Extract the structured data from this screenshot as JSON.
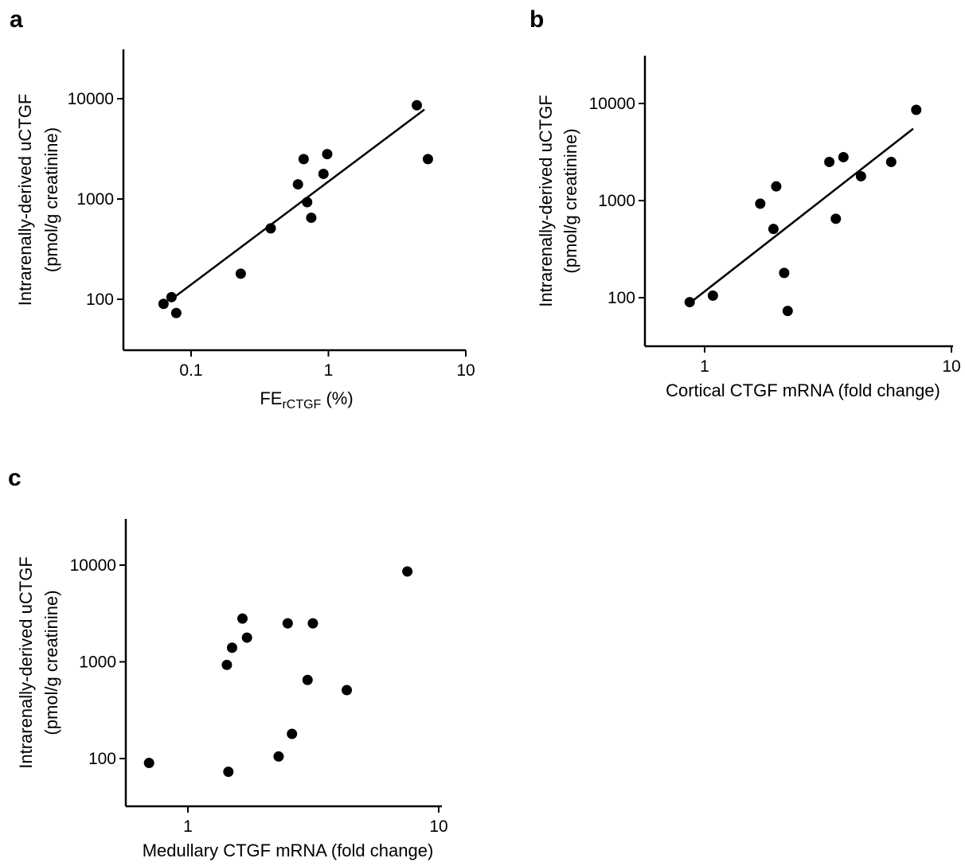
{
  "chart_data": [
    {
      "panel": "a",
      "type": "scatter",
      "xlabel": "FE",
      "xlabel_sub": "rCTGF",
      "xlabel_suffix": " (%)",
      "ylabel": "Intrarenally-derived uCTGF",
      "ylabel2": "(pmol/g creatinine)",
      "xscale": "log",
      "yscale": "log",
      "xlim": [
        0.03,
        11
      ],
      "ylim": [
        40,
        35000
      ],
      "xticks": [
        0.1,
        1,
        10
      ],
      "xtick_labels": [
        "0.1",
        "1",
        "10"
      ],
      "yticks": [
        100,
        1000,
        10000
      ],
      "ytick_labels": [
        "100",
        "1000",
        "10000"
      ],
      "points": [
        [
          0.063,
          90
        ],
        [
          0.072,
          105
        ],
        [
          0.078,
          73
        ],
        [
          0.23,
          180
        ],
        [
          0.38,
          510
        ],
        [
          0.6,
          1400
        ],
        [
          0.66,
          2500
        ],
        [
          0.7,
          930
        ],
        [
          0.75,
          650
        ],
        [
          0.92,
          1780
        ],
        [
          0.98,
          2800
        ],
        [
          4.4,
          8600
        ],
        [
          5.3,
          2500
        ]
      ],
      "fit": [
        [
          0.072,
          100
        ],
        [
          5.0,
          7800
        ]
      ]
    },
    {
      "panel": "b",
      "type": "scatter",
      "xlabel": "Cortical CTGF mRNA (fold change)",
      "ylabel": "Intrarenally-derived uCTGF",
      "ylabel2": "(pmol/g creatinine)",
      "xscale": "log",
      "yscale": "log",
      "xlim": [
        0.55,
        10.5
      ],
      "ylim": [
        30,
        35000
      ],
      "xticks": [
        1,
        10
      ],
      "xtick_labels": [
        "1",
        "10"
      ],
      "yticks": [
        100,
        1000,
        10000
      ],
      "ytick_labels": [
        "100",
        "1000",
        "10000"
      ],
      "points": [
        [
          0.87,
          90
        ],
        [
          1.08,
          105
        ],
        [
          1.68,
          930
        ],
        [
          1.9,
          510
        ],
        [
          1.95,
          1400
        ],
        [
          2.1,
          180
        ],
        [
          2.17,
          73
        ],
        [
          3.2,
          2500
        ],
        [
          3.4,
          650
        ],
        [
          3.65,
          2800
        ],
        [
          4.3,
          1780
        ],
        [
          5.7,
          2500
        ],
        [
          7.2,
          8600
        ]
      ],
      "fit": [
        [
          0.87,
          88
        ],
        [
          7.0,
          5500
        ]
      ]
    },
    {
      "panel": "c",
      "type": "scatter",
      "xlabel": "Medullary CTGF mRNA (fold change)",
      "ylabel": "Intrarenally-derived uCTGF",
      "ylabel2": "(pmol/g creatinine)",
      "xscale": "log",
      "yscale": "log",
      "xlim": [
        0.55,
        10.5
      ],
      "ylim": [
        30,
        35000
      ],
      "xticks": [
        1,
        10
      ],
      "xtick_labels": [
        "1",
        "10"
      ],
      "yticks": [
        100,
        1000,
        10000
      ],
      "ytick_labels": [
        "100",
        "1000",
        "10000"
      ],
      "points": [
        [
          0.7,
          90
        ],
        [
          1.43,
          930
        ],
        [
          1.45,
          73
        ],
        [
          1.5,
          1400
        ],
        [
          1.65,
          2800
        ],
        [
          1.72,
          1780
        ],
        [
          2.3,
          105
        ],
        [
          2.5,
          2500
        ],
        [
          2.6,
          180
        ],
        [
          3.0,
          650
        ],
        [
          3.15,
          2500
        ],
        [
          4.3,
          510
        ],
        [
          7.5,
          8600
        ]
      ]
    }
  ]
}
